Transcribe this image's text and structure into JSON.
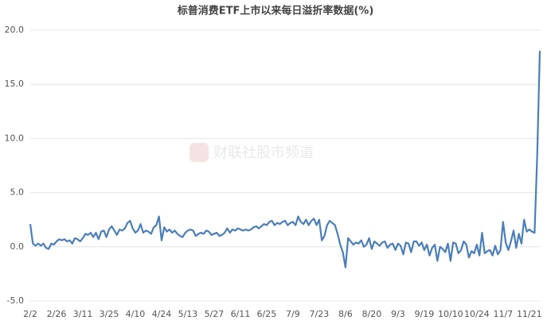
{
  "chart_data": {
    "type": "line",
    "title": "标普消费ETF上市以来每日溢折率数据(%)",
    "watermark": "财联社股市频道",
    "categories": [
      "2/2",
      null,
      null,
      null,
      null,
      null,
      null,
      null,
      null,
      null,
      "2/26",
      null,
      null,
      null,
      null,
      null,
      null,
      null,
      null,
      null,
      "3/11",
      null,
      null,
      null,
      null,
      null,
      null,
      null,
      null,
      null,
      "3/25",
      null,
      null,
      null,
      null,
      null,
      null,
      null,
      null,
      null,
      "4/10",
      null,
      null,
      null,
      null,
      null,
      null,
      null,
      null,
      null,
      "4/24",
      null,
      null,
      null,
      null,
      null,
      null,
      null,
      null,
      null,
      "5/13",
      null,
      null,
      null,
      null,
      null,
      null,
      null,
      null,
      null,
      "5/27",
      null,
      null,
      null,
      null,
      null,
      null,
      null,
      null,
      null,
      "6/11",
      null,
      null,
      null,
      null,
      null,
      null,
      null,
      null,
      null,
      "6/25",
      null,
      null,
      null,
      null,
      null,
      null,
      null,
      null,
      null,
      "7/9",
      null,
      null,
      null,
      null,
      null,
      null,
      null,
      null,
      null,
      "7/23",
      null,
      null,
      null,
      null,
      null,
      null,
      null,
      null,
      null,
      "8/6",
      null,
      null,
      null,
      null,
      null,
      null,
      null,
      null,
      null,
      "8/20",
      null,
      null,
      null,
      null,
      null,
      null,
      null,
      null,
      null,
      "9/3",
      null,
      null,
      null,
      null,
      null,
      null,
      null,
      null,
      null,
      "9/19",
      null,
      null,
      null,
      null,
      null,
      null,
      null,
      null,
      null,
      "10/10",
      null,
      null,
      null,
      null,
      null,
      null,
      null,
      null,
      null,
      "10/24",
      null,
      null,
      null,
      null,
      null,
      null,
      null,
      null,
      null,
      "11/7",
      null,
      null,
      null,
      null,
      null,
      null,
      null,
      null,
      null,
      "11/21",
      null,
      null,
      null,
      null
    ],
    "series": [
      {
        "color": "#4a7ebb",
        "values": [
          2.1,
          0.3,
          0.1,
          0.3,
          0.1,
          0.3,
          -0.1,
          -0.2,
          0.3,
          0.2,
          0.5,
          0.7,
          0.6,
          0.7,
          0.5,
          0.6,
          0.3,
          0.8,
          0.7,
          0.5,
          0.8,
          1.2,
          1.1,
          1.3,
          0.9,
          1.3,
          0.7,
          1.4,
          1.5,
          0.9,
          1.6,
          1.9,
          1.5,
          1.1,
          1.6,
          1.5,
          1.7,
          2.2,
          2.4,
          1.7,
          1.3,
          1.5,
          2.1,
          1.3,
          1.5,
          1.4,
          1.2,
          1.8,
          2.0,
          2.8,
          0.6,
          1.8,
          1.4,
          1.6,
          1.3,
          1.5,
          1.2,
          1.0,
          0.9,
          1.3,
          1.5,
          1.6,
          1.5,
          1.0,
          1.2,
          1.3,
          1.2,
          1.5,
          1.4,
          1.1,
          1.2,
          1.3,
          1.0,
          1.1,
          1.3,
          1.7,
          1.3,
          1.6,
          1.5,
          1.7,
          1.6,
          1.5,
          1.6,
          1.5,
          1.6,
          1.8,
          1.9,
          1.7,
          1.9,
          2.1,
          2.0,
          2.3,
          2.4,
          2.0,
          2.2,
          2.1,
          2.3,
          2.4,
          2.0,
          2.2,
          2.3,
          2.0,
          2.8,
          2.3,
          2.1,
          2.5,
          2.0,
          2.4,
          2.6,
          2.0,
          2.5,
          0.6,
          1.0,
          2.0,
          2.4,
          2.2,
          2.0,
          1.2,
          0.2,
          -0.5,
          -1.9,
          0.8,
          0.5,
          0.2,
          0.4,
          0.3,
          0.6,
          0.0,
          0.2,
          0.8,
          -0.2,
          0.5,
          0.3,
          0.1,
          0.4,
          0.5,
          -0.1,
          0.2,
          0.3,
          -0.3,
          0.3,
          0.1,
          -0.7,
          0.4,
          0.3,
          -0.5,
          0.5,
          0.5,
          0.1,
          0.4,
          -0.3,
          0.2,
          -0.8,
          -0.1,
          0.2,
          -1.3,
          0.0,
          -0.2,
          -0.5,
          0.3,
          -1.3,
          0.4,
          0.3,
          -0.6,
          -0.3,
          0.5,
          0.2,
          -1.0,
          -0.4,
          -0.6,
          0.2,
          -0.8,
          1.3,
          -0.6,
          -0.4,
          -0.3,
          -0.8,
          0.1,
          -0.7,
          -0.3,
          2.3,
          0.4,
          -0.3,
          0.5,
          1.5,
          -0.1,
          1.2,
          0.3,
          2.5,
          1.4,
          1.6,
          1.4,
          1.3,
          8.5,
          18.1
        ]
      }
    ],
    "ylim": [
      -5,
      20
    ],
    "yticks": [
      {
        "value": -5,
        "label": "-5.0"
      },
      {
        "value": 0,
        "label": "0.0"
      },
      {
        "value": 5,
        "label": "5.0"
      },
      {
        "value": 10,
        "label": "10.0"
      },
      {
        "value": 15,
        "label": "15.0"
      },
      {
        "value": 20,
        "label": "20.0"
      }
    ],
    "grid": true
  }
}
